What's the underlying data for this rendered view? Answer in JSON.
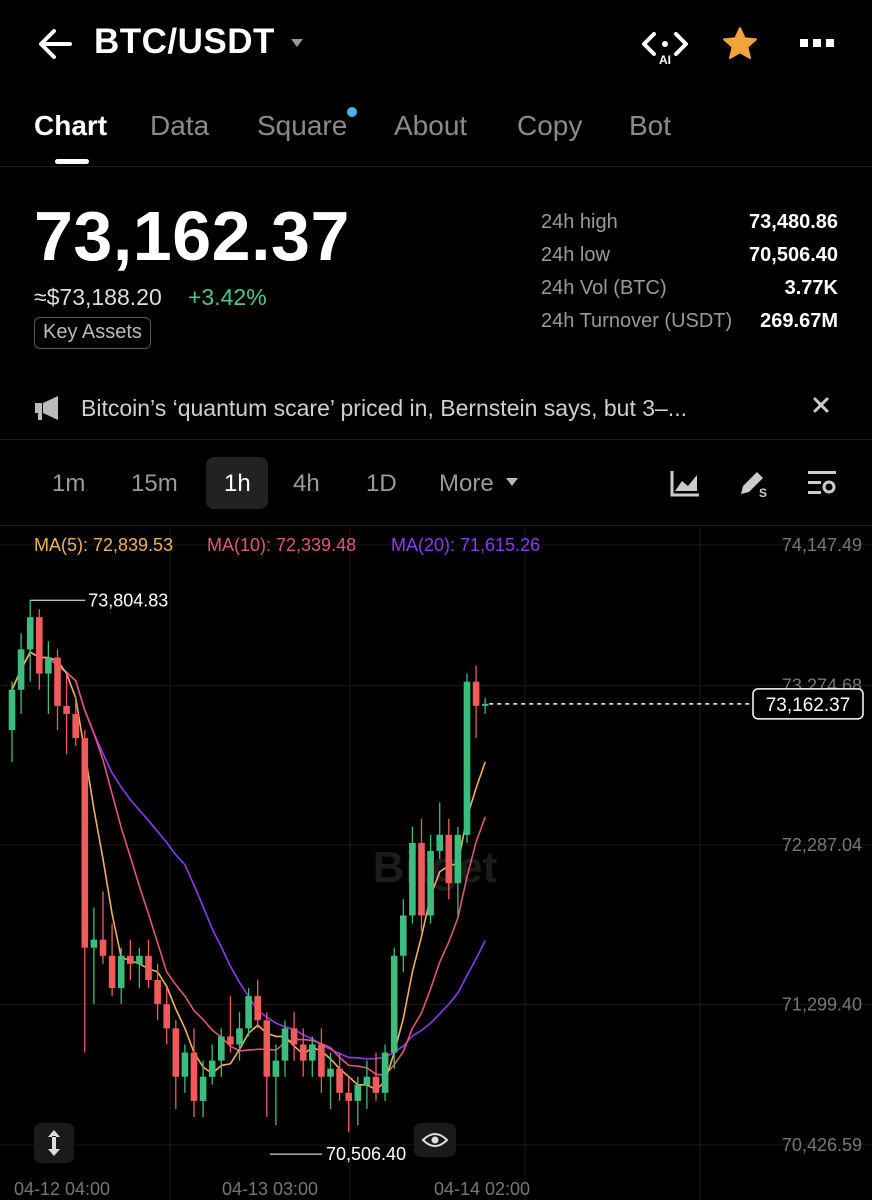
{
  "header": {
    "pair": "BTC/USDT",
    "icons": [
      "back-arrow-icon",
      "caret-down-icon",
      "ai-icon",
      "star-icon",
      "more-icon"
    ]
  },
  "tabs": [
    {
      "label": "Chart",
      "active": true
    },
    {
      "label": "Data"
    },
    {
      "label": "Square",
      "has_dot": true
    },
    {
      "label": "About"
    },
    {
      "label": "Copy"
    },
    {
      "label": "Bot"
    }
  ],
  "ticker": {
    "price": "73,162.37",
    "usd_price": "≈$73,188.20",
    "change": "+3.42%",
    "badge": "Key Assets",
    "stats": [
      {
        "label": "24h high",
        "value": "73,480.86"
      },
      {
        "label": "24h low",
        "value": "70,506.40"
      },
      {
        "label": "24h Vol (BTC)",
        "value": "3.77K"
      },
      {
        "label": "24h Turnover (USDT)",
        "value": "269.67M"
      }
    ]
  },
  "news": {
    "text": "Bitcoin’s ‘quantum scare’ priced in, Bernstein says, but 3–..."
  },
  "intervals": [
    {
      "label": "1m"
    },
    {
      "label": "15m"
    },
    {
      "label": "1h",
      "active": true
    },
    {
      "label": "4h"
    },
    {
      "label": "1D"
    },
    {
      "label": "More"
    }
  ],
  "colors": {
    "up": "#3dbd7d",
    "down": "#ef5b5b",
    "ma5": "#f0b15a",
    "ma10": "#e0557e",
    "ma20": "#8a3cf0"
  },
  "chart": {
    "ma_labels": [
      {
        "text": "MA(5): 72,839.53",
        "color": "#f0b15a"
      },
      {
        "text": "MA(10): 72,339.48",
        "color": "#e0557e"
      },
      {
        "text": "MA(20): 71,615.26",
        "color": "#8a3cf0"
      }
    ],
    "y_ticks": [
      "74,147.49",
      "73,274.68",
      "72,287.04",
      "71,299.40",
      "70,426.59"
    ],
    "x_ticks": [
      "04-12 04:00",
      "04-13 03:00",
      "04-14 02:00"
    ],
    "high_label": "73,804.83",
    "low_label": "70,506.40",
    "last_price": "73,162.37",
    "watermark": "Bitget"
  },
  "chart_data": {
    "type": "candlestick",
    "interval": "1h",
    "ylim": [
      70426.59,
      74147.49
    ],
    "y_ticks": [
      74147.49,
      73274.68,
      72287.04,
      71299.4,
      70426.59
    ],
    "x_ticks": [
      "04-12 04:00",
      "04-13 03:00",
      "04-14 02:00"
    ],
    "ohlc": [
      [
        73000,
        73300,
        72800,
        73250
      ],
      [
        73250,
        73600,
        73100,
        73500
      ],
      [
        73500,
        73804.83,
        73300,
        73700
      ],
      [
        73700,
        73750,
        73250,
        73350
      ],
      [
        73350,
        73550,
        73100,
        73450
      ],
      [
        73450,
        73500,
        73000,
        73150
      ],
      [
        73150,
        73350,
        72850,
        73100
      ],
      [
        73100,
        73200,
        72900,
        72950
      ],
      [
        72950,
        73000,
        71000,
        71650
      ],
      [
        71650,
        71900,
        71300,
        71700
      ],
      [
        71700,
        72000,
        71550,
        71600
      ],
      [
        71600,
        71800,
        71350,
        71400
      ],
      [
        71400,
        71650,
        71300,
        71600
      ],
      [
        71600,
        71700,
        71450,
        71550
      ],
      [
        71550,
        71650,
        71400,
        71600
      ],
      [
        71600,
        71700,
        71400,
        71450
      ],
      [
        71450,
        71550,
        71200,
        71300
      ],
      [
        71300,
        71400,
        71050,
        71150
      ],
      [
        71150,
        71200,
        70650,
        70850
      ],
      [
        70850,
        71050,
        70750,
        71000
      ],
      [
        71000,
        71150,
        70600,
        70700
      ],
      [
        70700,
        70950,
        70600,
        70850
      ],
      [
        70850,
        71050,
        70800,
        70950
      ],
      [
        70950,
        71150,
        70850,
        71100
      ],
      [
        71100,
        71350,
        71000,
        71050
      ],
      [
        71050,
        71250,
        70950,
        71150
      ],
      [
        71150,
        71400,
        71100,
        71350
      ],
      [
        71350,
        71450,
        71150,
        71200
      ],
      [
        71200,
        71250,
        70600,
        70850
      ],
      [
        70850,
        71050,
        70550,
        70950
      ],
      [
        70950,
        71200,
        70850,
        71150
      ],
      [
        71150,
        71250,
        70950,
        71050
      ],
      [
        71050,
        71150,
        70850,
        70950
      ],
      [
        70950,
        71100,
        70850,
        71050
      ],
      [
        71050,
        71150,
        70750,
        70850
      ],
      [
        70850,
        71000,
        70650,
        70900
      ],
      [
        70900,
        71000,
        70700,
        70750
      ],
      [
        70750,
        70850,
        70506.4,
        70700
      ],
      [
        70700,
        70850,
        70550,
        70800
      ],
      [
        70800,
        70950,
        70650,
        70850
      ],
      [
        70850,
        71000,
        70700,
        70750
      ],
      [
        70750,
        71050,
        70700,
        71000
      ],
      [
        71000,
        71650,
        70900,
        71600
      ],
      [
        71600,
        71950,
        71500,
        71850
      ],
      [
        71850,
        72400,
        71800,
        72300
      ],
      [
        72300,
        72450,
        71750,
        71850
      ],
      [
        71850,
        72350,
        71800,
        72250
      ],
      [
        72250,
        72550,
        72200,
        72350
      ],
      [
        72350,
        72450,
        71950,
        72050
      ],
      [
        72050,
        72400,
        71850,
        72350
      ],
      [
        72350,
        73350,
        72300,
        73300
      ],
      [
        73300,
        73400,
        72950,
        73150
      ],
      [
        73150,
        73200,
        73100,
        73162.37
      ]
    ],
    "ma5_last": 72839.53,
    "ma10_last": 72339.48,
    "ma20_last": 71615.26
  }
}
